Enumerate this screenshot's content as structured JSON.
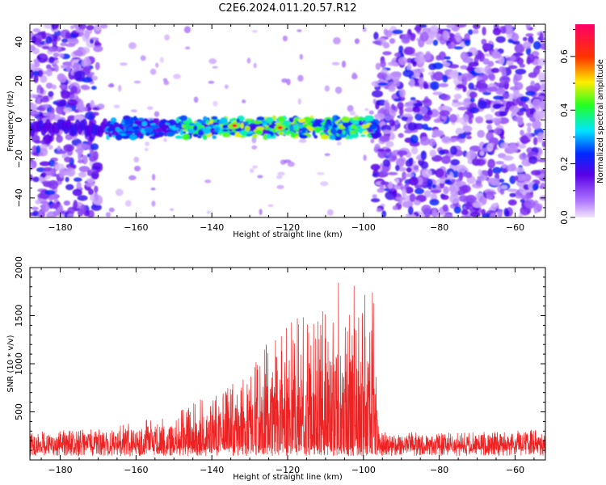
{
  "figure": {
    "title": "C2E6.2024.011.20.57.R12"
  },
  "colors": {
    "snr_line": "#ee2222",
    "axis": "#000000",
    "background": "#ffffff"
  },
  "chart_data": [
    {
      "type": "heatmap",
      "title": "",
      "xlabel": "Height of straight line (km)",
      "ylabel": "Frequency (Hz)",
      "xlim": [
        -188,
        -52
      ],
      "ylim": [
        -50,
        49
      ],
      "xticks": [
        -180,
        -160,
        -140,
        -120,
        -100,
        -80,
        -60
      ],
      "yticks": [
        -40,
        -20,
        0,
        20,
        40
      ],
      "colorbar": {
        "label": "Normalized spectral amplitude",
        "range": [
          0,
          0.72
        ],
        "ticks": [
          0.0,
          0.2,
          0.4,
          0.6
        ],
        "colormap": "rainbow (violet→blue→cyan→green→yellow→red→magenta)"
      },
      "features": {
        "echo_band_center_hz": -4,
        "echo_band_halfwidth_hz": 5,
        "echo_band_x_range": [
          -188,
          -96
        ],
        "peak_points": [
          {
            "x": -134,
            "y": -3,
            "value": 0.68
          },
          {
            "x": -122,
            "y": -4,
            "value": 0.65
          }
        ],
        "noise_region_left_x": [
          -188,
          -170
        ],
        "noise_region_right_x": [
          -97,
          -52
        ],
        "sparse_region_x": [
          -170,
          -97
        ]
      }
    },
    {
      "type": "line",
      "title": "",
      "xlabel": "Height of straight line (km)",
      "ylabel": "SNR (10 * v/v)",
      "xlim": [
        -188,
        -52
      ],
      "ylim": [
        0,
        2000
      ],
      "xticks": [
        -180,
        -160,
        -140,
        -120,
        -100,
        -80,
        -60
      ],
      "yticks": [
        500,
        1000,
        1500,
        2000
      ],
      "series": [
        {
          "envelope": [
            {
              "x": -188,
              "y": 300
            },
            {
              "x": -170,
              "y": 320
            },
            {
              "x": -160,
              "y": 400
            },
            {
              "x": -150,
              "y": 480
            },
            {
              "x": -145,
              "y": 600
            },
            {
              "x": -140,
              "y": 720
            },
            {
              "x": -130,
              "y": 900
            },
            {
              "x": -125,
              "y": 1250
            },
            {
              "x": -120,
              "y": 1500
            },
            {
              "x": -115,
              "y": 1500
            },
            {
              "x": -110,
              "y": 1650
            },
            {
              "x": -105,
              "y": 1980
            },
            {
              "x": -100,
              "y": 1700
            },
            {
              "x": -97,
              "y": 1900
            },
            {
              "x": -96,
              "y": 300
            },
            {
              "x": -80,
              "y": 280
            },
            {
              "x": -52,
              "y": 320
            }
          ]
        }
      ]
    }
  ]
}
